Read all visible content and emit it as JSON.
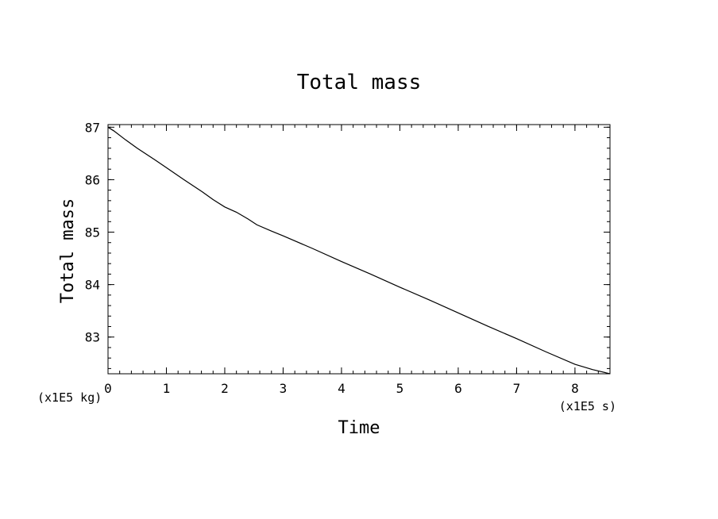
{
  "chart_data": {
    "type": "line",
    "title": "Total mass",
    "xlabel": "Time",
    "ylabel": "Total mass",
    "x_unit": "(x1E5 s)",
    "y_unit": "(x1E5 kg)",
    "xlim": [
      0,
      8.6
    ],
    "ylim": [
      82.3,
      87.05
    ],
    "x_ticks": [
      "0",
      "1",
      "2",
      "3",
      "4",
      "5",
      "6",
      "7",
      "8"
    ],
    "y_ticks": [
      "83",
      "84",
      "85",
      "86",
      "87"
    ],
    "grid": false,
    "series": [
      {
        "x": [
          0,
          0.1,
          0.3,
          0.5,
          0.8,
          1.0,
          1.3,
          1.6,
          1.8,
          2.0,
          2.2,
          2.4,
          2.55,
          2.8,
          3.0,
          3.5,
          4.0,
          4.5,
          5.0,
          5.5,
          6.0,
          6.5,
          7.0,
          7.5,
          8.0,
          8.3,
          8.6
        ],
        "y": [
          87.0,
          86.93,
          86.76,
          86.6,
          86.38,
          86.23,
          86.0,
          85.78,
          85.62,
          85.48,
          85.38,
          85.25,
          85.14,
          85.02,
          84.93,
          84.69,
          84.44,
          84.2,
          83.95,
          83.71,
          83.46,
          83.21,
          82.97,
          82.72,
          82.48,
          82.38,
          82.3
        ]
      }
    ]
  }
}
